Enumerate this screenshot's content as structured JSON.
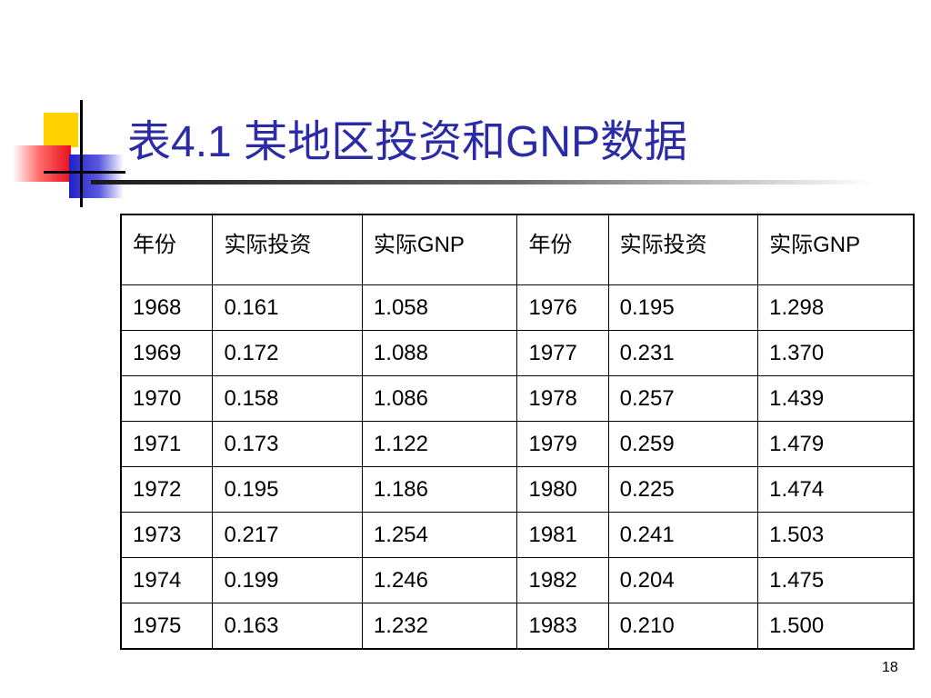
{
  "slide": {
    "title": "表4.1 某地区投资和GNP数据",
    "page_number": "18"
  },
  "table": {
    "headers": [
      "年份",
      "实际投资",
      "实际GNP",
      "年份",
      "实际投资",
      "实际GNP"
    ],
    "rows": [
      [
        "1968",
        "0.161",
        "1.058",
        "1976",
        "0.195",
        "1.298"
      ],
      [
        "1969",
        "0.172",
        "1.088",
        "1977",
        "0.231",
        "1.370"
      ],
      [
        "1970",
        "0.158",
        "1.086",
        "1978",
        "0.257",
        "1.439"
      ],
      [
        "1971",
        "0.173",
        "1.122",
        "1979",
        "0.259",
        "1.479"
      ],
      [
        "1972",
        "0.195",
        "1.186",
        "1980",
        "0.225",
        "1.474"
      ],
      [
        "1973",
        "0.217",
        "1.254",
        "1981",
        "0.241",
        "1.503"
      ],
      [
        "1974",
        "0.199",
        "1.246",
        "1982",
        "0.204",
        "1.475"
      ],
      [
        "1975",
        "0.163",
        "1.232",
        "1983",
        "0.210",
        "1.500"
      ]
    ]
  },
  "colors": {
    "title": "#2b2ba6",
    "accent_yellow": "#ffd200",
    "accent_red": "#e8101e",
    "accent_blue": "#2020c8"
  }
}
